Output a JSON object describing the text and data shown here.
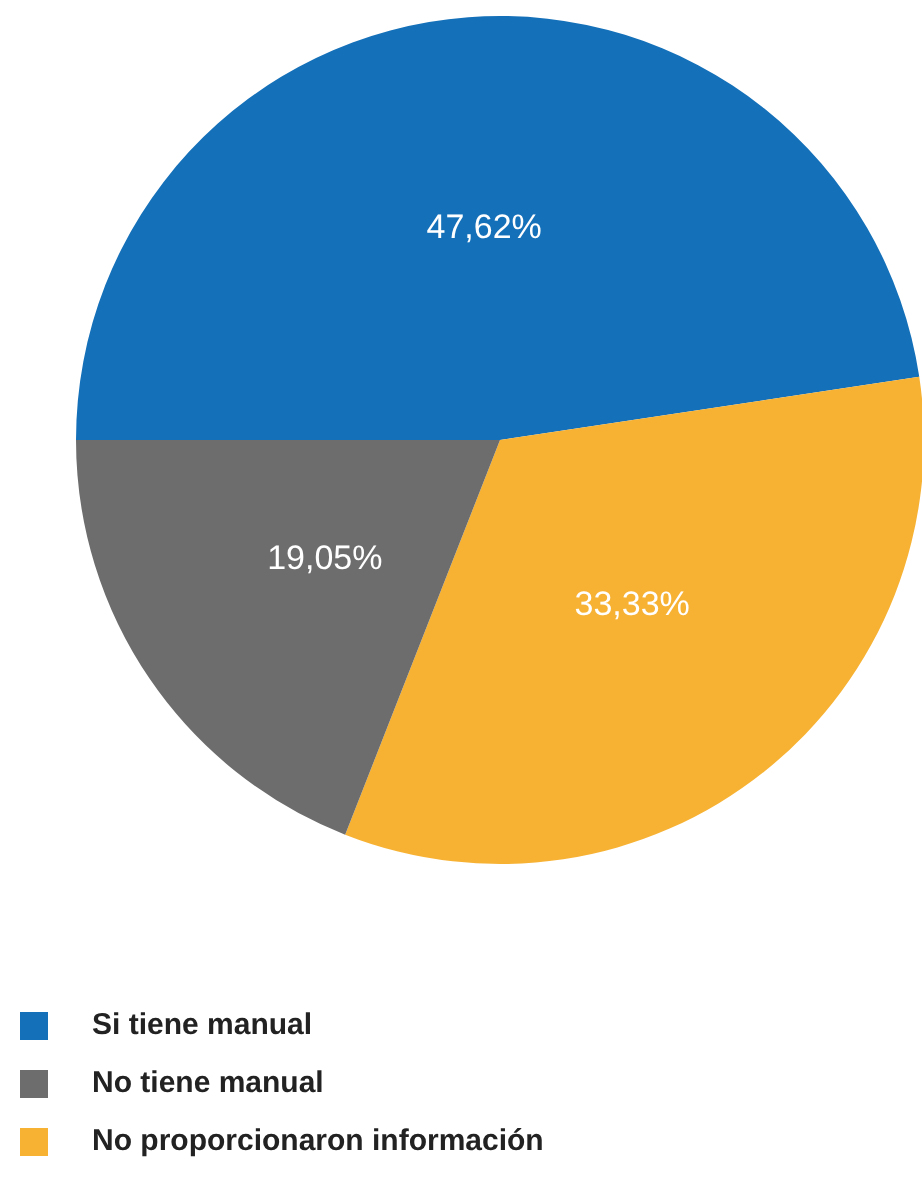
{
  "chart_data": {
    "type": "pie",
    "categories": [
      "Si tiene manual",
      "No proporcionaron información",
      "No tiene manual"
    ],
    "values": [
      47.62,
      33.33,
      19.05
    ],
    "colors": [
      "#1470b9",
      "#f7b234",
      "#6d6d6d"
    ],
    "value_labels": [
      "47,62%",
      "33,33%",
      "19,05%"
    ],
    "legend": "bottom left"
  }
}
